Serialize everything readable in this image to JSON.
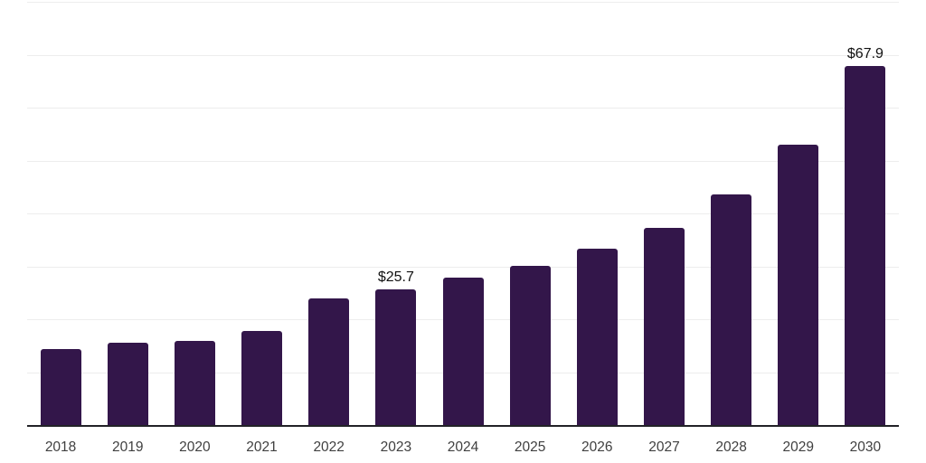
{
  "page": {
    "background": "#ffffff"
  },
  "chart_data": {
    "type": "bar",
    "categories": [
      "2018",
      "2019",
      "2020",
      "2021",
      "2022",
      "2023",
      "2024",
      "2025",
      "2026",
      "2027",
      "2028",
      "2029",
      "2030"
    ],
    "values": [
      14.4,
      15.6,
      15.9,
      17.7,
      23.9,
      25.7,
      27.9,
      30.1,
      33.3,
      37.3,
      43.6,
      53.0,
      67.9
    ],
    "data_labels": [
      {
        "category": "2023",
        "text": "$25.7"
      },
      {
        "category": "2030",
        "text": "$67.9"
      }
    ],
    "title": "",
    "xlabel": "",
    "ylabel": "",
    "ylim": [
      0,
      80
    ],
    "grid": "horizontal",
    "gridline_count": 8,
    "legend": "none",
    "y_axis_labels_visible": false,
    "colors": {
      "bar": "#33164a",
      "axis_line": "#222227",
      "gridline": "#ededed",
      "value_label": "#111111",
      "tick_label": "#404040"
    }
  }
}
